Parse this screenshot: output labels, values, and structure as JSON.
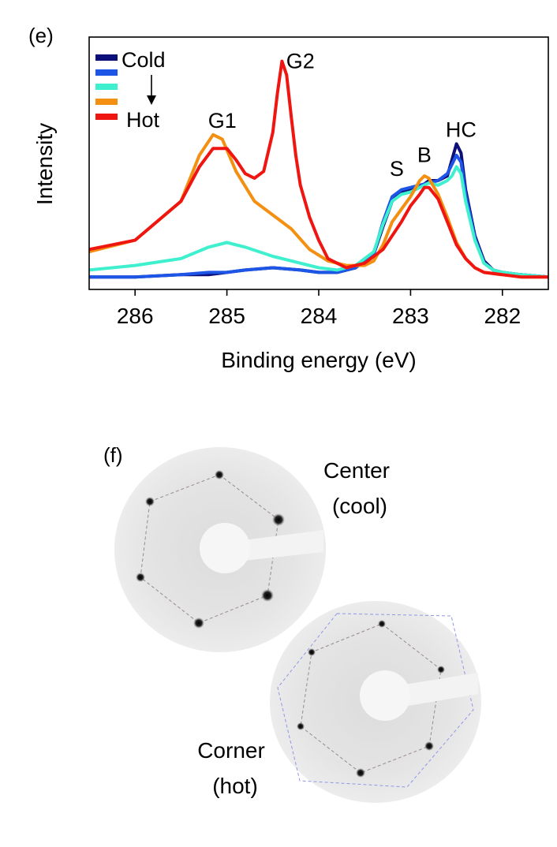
{
  "panel_e": {
    "panel_label": "(e)",
    "chart_data": {
      "type": "line",
      "title": "",
      "xlabel": "Binding energy (eV)",
      "ylabel": "Intensity",
      "xlim": [
        286.5,
        281.5
      ],
      "x_reversed": true,
      "ylim": [
        0,
        1
      ],
      "y_ticks_shown": false,
      "xticks": [
        "286",
        "285",
        "284",
        "283",
        "282"
      ],
      "xtick_values": [
        286,
        285,
        284,
        283,
        282
      ],
      "legend": {
        "placement": "top-left",
        "entries": [
          "Cold",
          "",
          "",
          "",
          "Hot"
        ],
        "arrow": "Cold to Hot"
      },
      "annotations": [
        {
          "text": "G1",
          "x": 285.05,
          "y": 0.67
        },
        {
          "text": "G2",
          "x": 284.2,
          "y": 0.93
        },
        {
          "text": "S",
          "x": 283.15,
          "y": 0.46
        },
        {
          "text": "B",
          "x": 282.85,
          "y": 0.52
        },
        {
          "text": "HC",
          "x": 282.45,
          "y": 0.63
        }
      ],
      "series": [
        {
          "color": "#0c0f7a",
          "x": [
            286.5,
            286.0,
            285.5,
            285.2,
            285.0,
            284.8,
            284.5,
            284.2,
            284.0,
            283.8,
            283.6,
            283.4,
            283.3,
            283.2,
            283.1,
            283.0,
            282.9,
            282.8,
            282.7,
            282.6,
            282.55,
            282.5,
            282.45,
            282.4,
            282.3,
            282.2,
            282.1,
            282.0,
            281.8,
            281.5
          ],
          "y": [
            0.02,
            0.02,
            0.03,
            0.03,
            0.04,
            0.05,
            0.06,
            0.05,
            0.04,
            0.04,
            0.06,
            0.12,
            0.24,
            0.35,
            0.39,
            0.4,
            0.41,
            0.44,
            0.44,
            0.46,
            0.53,
            0.6,
            0.56,
            0.4,
            0.2,
            0.09,
            0.05,
            0.04,
            0.03,
            0.02
          ]
        },
        {
          "color": "#1d55e6",
          "x": [
            286.5,
            286.0,
            285.5,
            285.2,
            285.0,
            284.8,
            284.5,
            284.2,
            284.0,
            283.8,
            283.6,
            283.4,
            283.3,
            283.2,
            283.1,
            283.0,
            282.9,
            282.8,
            282.7,
            282.6,
            282.55,
            282.5,
            282.45,
            282.4,
            282.3,
            282.2,
            282.1,
            282.0,
            281.8,
            281.5
          ],
          "y": [
            0.02,
            0.02,
            0.03,
            0.04,
            0.04,
            0.05,
            0.06,
            0.05,
            0.04,
            0.04,
            0.06,
            0.12,
            0.26,
            0.37,
            0.4,
            0.41,
            0.42,
            0.43,
            0.44,
            0.47,
            0.51,
            0.55,
            0.52,
            0.38,
            0.19,
            0.08,
            0.05,
            0.04,
            0.03,
            0.02
          ]
        },
        {
          "color": "#3ff0cf",
          "x": [
            286.5,
            286.0,
            285.5,
            285.2,
            285.0,
            284.8,
            284.5,
            284.2,
            284.0,
            283.8,
            283.6,
            283.4,
            283.3,
            283.2,
            283.1,
            283.0,
            282.9,
            282.8,
            282.7,
            282.6,
            282.55,
            282.5,
            282.45,
            282.4,
            282.3,
            282.2,
            282.1,
            282.0,
            281.8,
            281.5
          ],
          "y": [
            0.05,
            0.07,
            0.1,
            0.15,
            0.17,
            0.15,
            0.11,
            0.08,
            0.06,
            0.05,
            0.07,
            0.13,
            0.25,
            0.35,
            0.38,
            0.39,
            0.41,
            0.43,
            0.42,
            0.44,
            0.46,
            0.5,
            0.47,
            0.35,
            0.18,
            0.08,
            0.05,
            0.04,
            0.03,
            0.02
          ]
        },
        {
          "color": "#f39012",
          "x": [
            286.5,
            286.0,
            285.5,
            285.3,
            285.15,
            285.05,
            284.9,
            284.7,
            284.5,
            284.3,
            284.1,
            283.9,
            283.7,
            283.5,
            283.4,
            283.3,
            283.2,
            283.0,
            282.9,
            282.85,
            282.8,
            282.7,
            282.6,
            282.5,
            282.4,
            282.3,
            282.2,
            282.0,
            281.8,
            281.5
          ],
          "y": [
            0.13,
            0.18,
            0.35,
            0.55,
            0.64,
            0.62,
            0.48,
            0.35,
            0.29,
            0.23,
            0.14,
            0.09,
            0.07,
            0.07,
            0.09,
            0.16,
            0.26,
            0.37,
            0.44,
            0.46,
            0.45,
            0.38,
            0.28,
            0.17,
            0.1,
            0.06,
            0.04,
            0.03,
            0.02,
            0.02
          ]
        },
        {
          "color": "#ef1510",
          "x": [
            286.5,
            286.0,
            285.5,
            285.3,
            285.15,
            285.0,
            284.9,
            284.8,
            284.7,
            284.6,
            284.5,
            284.45,
            284.4,
            284.35,
            284.3,
            284.25,
            284.2,
            284.1,
            284.0,
            283.9,
            283.7,
            283.5,
            283.3,
            283.1,
            283.0,
            282.9,
            282.85,
            282.8,
            282.7,
            282.6,
            282.5,
            282.4,
            282.3,
            282.2,
            282.0,
            281.8,
            281.5
          ],
          "y": [
            0.14,
            0.18,
            0.35,
            0.5,
            0.58,
            0.58,
            0.53,
            0.47,
            0.45,
            0.48,
            0.65,
            0.82,
            0.96,
            0.9,
            0.72,
            0.55,
            0.42,
            0.28,
            0.18,
            0.1,
            0.06,
            0.08,
            0.14,
            0.26,
            0.33,
            0.38,
            0.41,
            0.41,
            0.36,
            0.26,
            0.16,
            0.1,
            0.06,
            0.04,
            0.03,
            0.02,
            0.02
          ]
        }
      ]
    }
  },
  "panel_f": {
    "panel_label": "(f)",
    "top_label_line1": "Center",
    "top_label_line2": "(cool)",
    "bottom_label_line1": "Corner",
    "bottom_label_line2": "(hot)"
  }
}
